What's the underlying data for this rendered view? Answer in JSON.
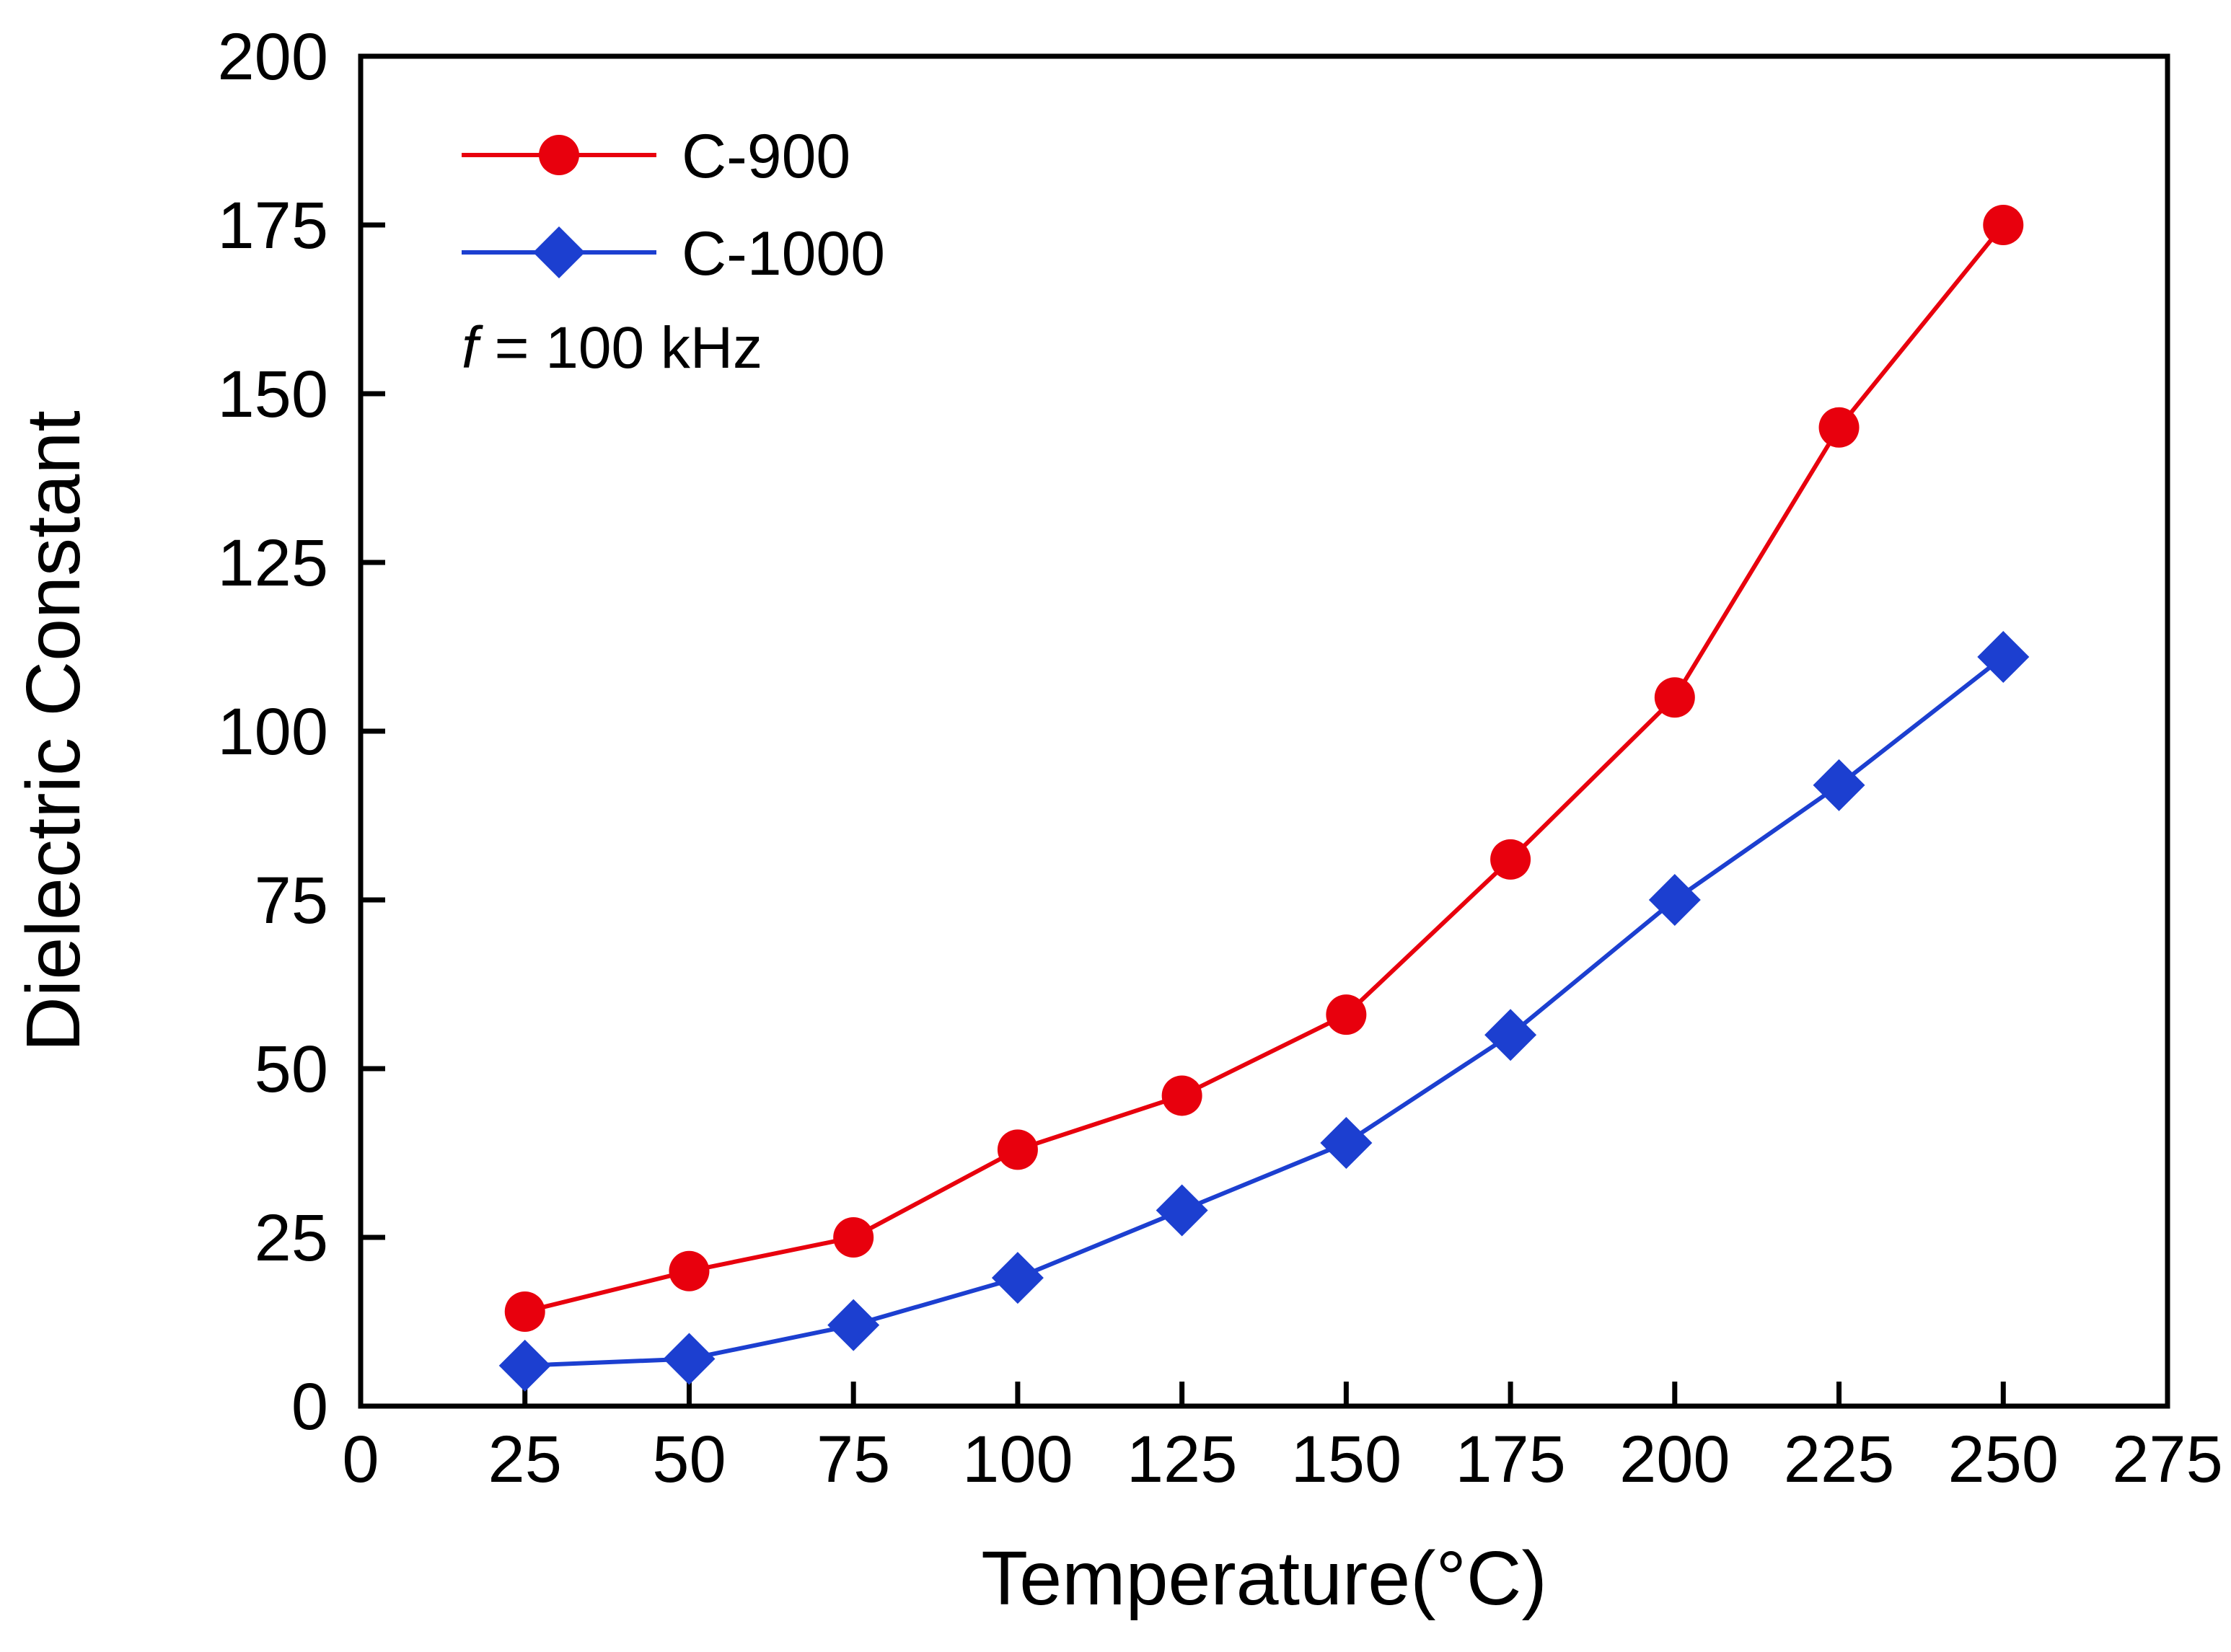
{
  "figure": {
    "background": "#ffffff",
    "frame_color": "#000000"
  },
  "chart_data": {
    "type": "line",
    "title": "",
    "xlabel": "Temperature(°C)",
    "ylabel": "Dielectric Constant",
    "xlim": [
      0,
      275
    ],
    "ylim": [
      0,
      200
    ],
    "xticks": [
      0,
      25,
      50,
      75,
      100,
      125,
      150,
      175,
      200,
      225,
      250,
      275
    ],
    "yticks": [
      0,
      25,
      50,
      75,
      100,
      125,
      150,
      175,
      200
    ],
    "grid": false,
    "legend_position": "top-left",
    "x": [
      25,
      50,
      75,
      100,
      125,
      150,
      175,
      200,
      225,
      250
    ],
    "series": [
      {
        "name": "C-900",
        "color": "#e8000d",
        "marker": "circle",
        "values": [
          14,
          20,
          25,
          38,
          46,
          58,
          81,
          105,
          145,
          175
        ]
      },
      {
        "name": "C-1000",
        "color": "#1c3fd0",
        "marker": "diamond",
        "values": [
          6,
          7,
          12,
          19,
          29,
          39,
          55,
          75,
          92,
          111
        ]
      }
    ],
    "annotation": {
      "italic_part": "f",
      "text_part": " = 100 kHz"
    }
  }
}
